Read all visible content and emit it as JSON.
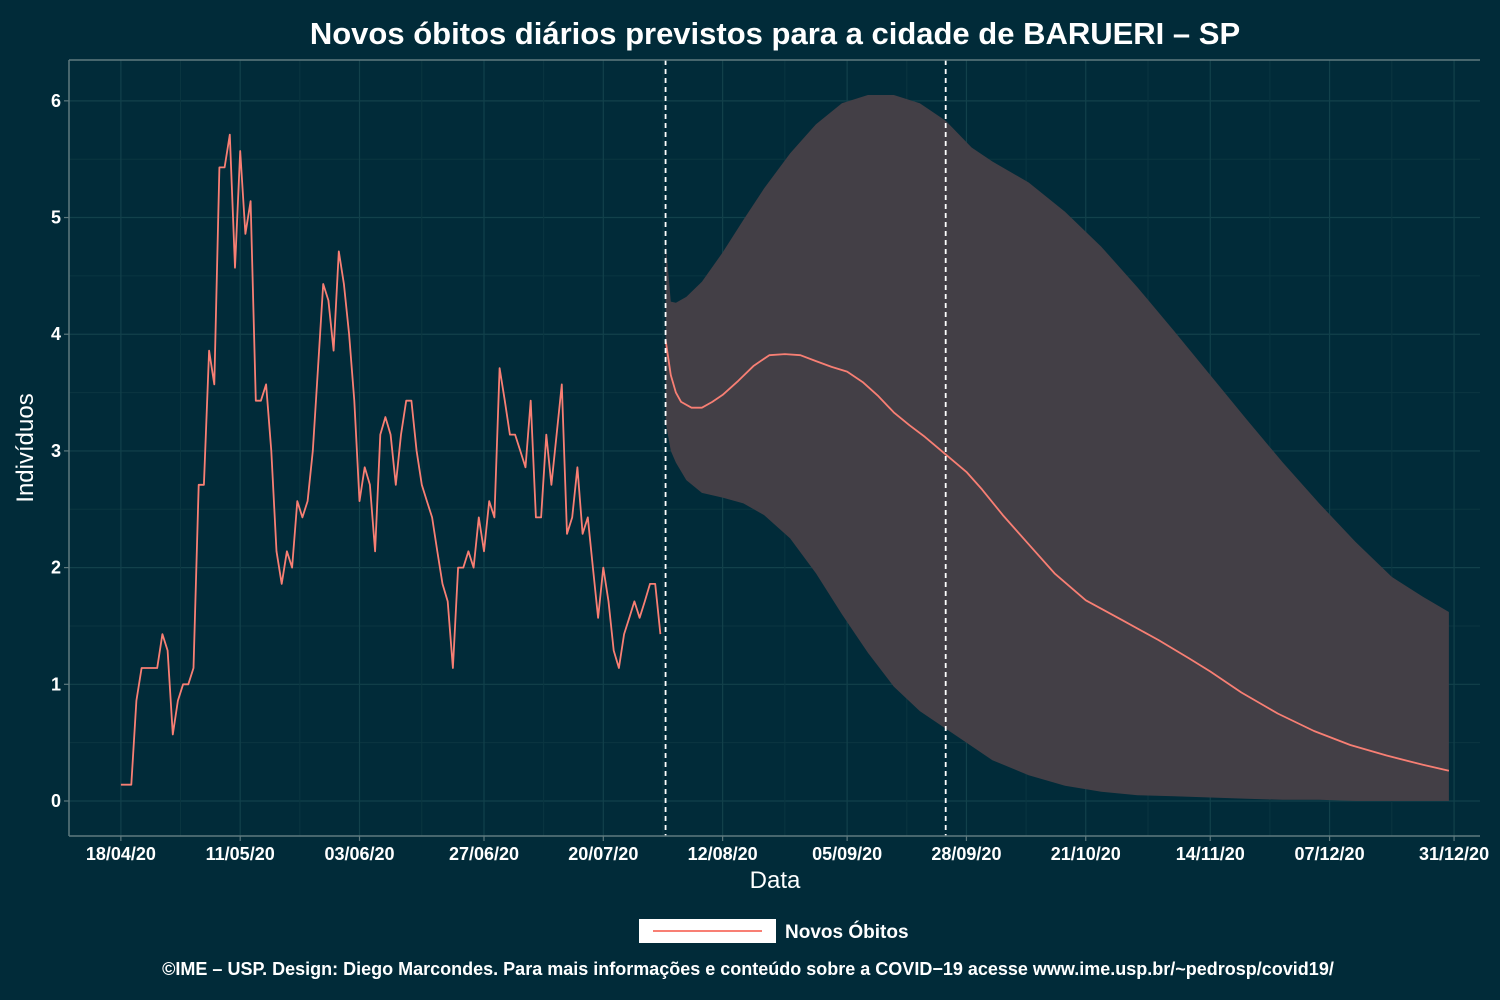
{
  "chart_data": {
    "type": "line",
    "title": "Novos óbitos diários previstos para a cidade de BARUERI – SP",
    "xlabel": "Data",
    "ylabel": "Indivíduos",
    "x_range": [
      "2020-04-08",
      "2021-01-05"
    ],
    "ylim": [
      -0.3,
      6.35
    ],
    "y_ticks": [
      0,
      1,
      2,
      3,
      4,
      5,
      6
    ],
    "x_ticks": [
      {
        "date": "2020-04-18",
        "label": "18/04/20"
      },
      {
        "date": "2020-05-11",
        "label": "11/05/20"
      },
      {
        "date": "2020-06-03",
        "label": "03/06/20"
      },
      {
        "date": "2020-06-27",
        "label": "27/06/20"
      },
      {
        "date": "2020-07-20",
        "label": "20/07/20"
      },
      {
        "date": "2020-08-12",
        "label": "12/08/20"
      },
      {
        "date": "2020-09-05",
        "label": "05/09/20"
      },
      {
        "date": "2020-09-28",
        "label": "28/09/20"
      },
      {
        "date": "2020-10-21",
        "label": "21/10/20"
      },
      {
        "date": "2020-11-14",
        "label": "14/11/20"
      },
      {
        "date": "2020-12-07",
        "label": "07/12/20"
      },
      {
        "date": "2020-12-31",
        "label": "31/12/20"
      }
    ],
    "grid": true,
    "legend_position": "bottom",
    "vlines": [
      "2020-08-01",
      "2020-09-24"
    ],
    "series": [
      {
        "name": "Novos Óbitos",
        "color": "#f87f74",
        "points": [
          [
            "2020-04-18",
            0.14
          ],
          [
            "2020-04-20",
            0.14
          ],
          [
            "2020-04-21",
            0.86
          ],
          [
            "2020-04-22",
            1.14
          ],
          [
            "2020-04-25",
            1.14
          ],
          [
            "2020-04-26",
            1.43
          ],
          [
            "2020-04-27",
            1.29
          ],
          [
            "2020-04-28",
            0.57
          ],
          [
            "2020-04-29",
            0.86
          ],
          [
            "2020-04-30",
            1.0
          ],
          [
            "2020-05-01",
            1.0
          ],
          [
            "2020-05-02",
            1.14
          ],
          [
            "2020-05-03",
            2.71
          ],
          [
            "2020-05-04",
            2.71
          ],
          [
            "2020-05-05",
            3.86
          ],
          [
            "2020-05-06",
            3.57
          ],
          [
            "2020-05-07",
            5.43
          ],
          [
            "2020-05-08",
            5.43
          ],
          [
            "2020-05-09",
            5.71
          ],
          [
            "2020-05-10",
            4.57
          ],
          [
            "2020-05-11",
            5.57
          ],
          [
            "2020-05-12",
            4.86
          ],
          [
            "2020-05-13",
            5.14
          ],
          [
            "2020-05-14",
            3.43
          ],
          [
            "2020-05-15",
            3.43
          ],
          [
            "2020-05-16",
            3.57
          ],
          [
            "2020-05-17",
            3.0
          ],
          [
            "2020-05-18",
            2.14
          ],
          [
            "2020-05-19",
            1.86
          ],
          [
            "2020-05-20",
            2.14
          ],
          [
            "2020-05-21",
            2.0
          ],
          [
            "2020-05-22",
            2.57
          ],
          [
            "2020-05-23",
            2.43
          ],
          [
            "2020-05-24",
            2.57
          ],
          [
            "2020-05-25",
            3.0
          ],
          [
            "2020-05-26",
            3.71
          ],
          [
            "2020-05-27",
            4.43
          ],
          [
            "2020-05-28",
            4.29
          ],
          [
            "2020-05-29",
            3.86
          ],
          [
            "2020-05-30",
            4.71
          ],
          [
            "2020-05-31",
            4.43
          ],
          [
            "2020-06-01",
            4.0
          ],
          [
            "2020-06-02",
            3.43
          ],
          [
            "2020-06-03",
            2.57
          ],
          [
            "2020-06-04",
            2.86
          ],
          [
            "2020-06-05",
            2.71
          ],
          [
            "2020-06-06",
            2.14
          ],
          [
            "2020-06-07",
            3.14
          ],
          [
            "2020-06-08",
            3.29
          ],
          [
            "2020-06-09",
            3.14
          ],
          [
            "2020-06-10",
            2.71
          ],
          [
            "2020-06-11",
            3.14
          ],
          [
            "2020-06-12",
            3.43
          ],
          [
            "2020-06-13",
            3.43
          ],
          [
            "2020-06-14",
            3.0
          ],
          [
            "2020-06-15",
            2.71
          ],
          [
            "2020-06-16",
            2.57
          ],
          [
            "2020-06-17",
            2.43
          ],
          [
            "2020-06-18",
            2.14
          ],
          [
            "2020-06-19",
            1.86
          ],
          [
            "2020-06-20",
            1.71
          ],
          [
            "2020-06-21",
            1.14
          ],
          [
            "2020-06-22",
            2.0
          ],
          [
            "2020-06-23",
            2.0
          ],
          [
            "2020-06-24",
            2.14
          ],
          [
            "2020-06-25",
            2.0
          ],
          [
            "2020-06-26",
            2.43
          ],
          [
            "2020-06-27",
            2.14
          ],
          [
            "2020-06-28",
            2.57
          ],
          [
            "2020-06-29",
            2.43
          ],
          [
            "2020-06-30",
            3.71
          ],
          [
            "2020-07-01",
            3.43
          ],
          [
            "2020-07-02",
            3.14
          ],
          [
            "2020-07-03",
            3.14
          ],
          [
            "2020-07-04",
            3.0
          ],
          [
            "2020-07-05",
            2.86
          ],
          [
            "2020-07-06",
            3.43
          ],
          [
            "2020-07-07",
            2.43
          ],
          [
            "2020-07-08",
            2.43
          ],
          [
            "2020-07-09",
            3.14
          ],
          [
            "2020-07-10",
            2.71
          ],
          [
            "2020-07-11",
            3.14
          ],
          [
            "2020-07-12",
            3.57
          ],
          [
            "2020-07-13",
            2.29
          ],
          [
            "2020-07-14",
            2.43
          ],
          [
            "2020-07-15",
            2.86
          ],
          [
            "2020-07-16",
            2.29
          ],
          [
            "2020-07-17",
            2.43
          ],
          [
            "2020-07-18",
            2.0
          ],
          [
            "2020-07-19",
            1.57
          ],
          [
            "2020-07-20",
            2.0
          ],
          [
            "2020-07-21",
            1.71
          ],
          [
            "2020-07-22",
            1.29
          ],
          [
            "2020-07-23",
            1.14
          ],
          [
            "2020-07-24",
            1.43
          ],
          [
            "2020-07-25",
            1.57
          ],
          [
            "2020-07-26",
            1.71
          ],
          [
            "2020-07-27",
            1.57
          ],
          [
            "2020-07-28",
            1.71
          ],
          [
            "2020-07-29",
            1.86
          ],
          [
            "2020-07-30",
            1.86
          ],
          [
            "2020-07-31",
            1.43
          ]
        ]
      },
      {
        "name": "Novos Óbitos",
        "color": "#f87f74",
        "points": [
          [
            "2020-08-01",
            3.95
          ],
          [
            "2020-08-02",
            3.65
          ],
          [
            "2020-08-03",
            3.5
          ],
          [
            "2020-08-04",
            3.42
          ],
          [
            "2020-08-06",
            3.37
          ],
          [
            "2020-08-08",
            3.37
          ],
          [
            "2020-08-10",
            3.42
          ],
          [
            "2020-08-12",
            3.48
          ],
          [
            "2020-08-15",
            3.6
          ],
          [
            "2020-08-18",
            3.73
          ],
          [
            "2020-08-21",
            3.82
          ],
          [
            "2020-08-24",
            3.83
          ],
          [
            "2020-08-27",
            3.82
          ],
          [
            "2020-08-30",
            3.77
          ],
          [
            "2020-09-02",
            3.72
          ],
          [
            "2020-09-05",
            3.68
          ],
          [
            "2020-09-08",
            3.59
          ],
          [
            "2020-09-11",
            3.47
          ],
          [
            "2020-09-14",
            3.33
          ],
          [
            "2020-09-17",
            3.22
          ],
          [
            "2020-09-20",
            3.12
          ],
          [
            "2020-09-24",
            2.97
          ],
          [
            "2020-09-28",
            2.82
          ],
          [
            "2020-10-01",
            2.67
          ],
          [
            "2020-10-05",
            2.45
          ],
          [
            "2020-10-10",
            2.2
          ],
          [
            "2020-10-15",
            1.95
          ],
          [
            "2020-10-21",
            1.72
          ],
          [
            "2020-10-28",
            1.55
          ],
          [
            "2020-11-04",
            1.38
          ],
          [
            "2020-11-10",
            1.22
          ],
          [
            "2020-11-14",
            1.11
          ],
          [
            "2020-11-20",
            0.93
          ],
          [
            "2020-11-27",
            0.75
          ],
          [
            "2020-12-04",
            0.6
          ],
          [
            "2020-12-11",
            0.48
          ],
          [
            "2020-12-18",
            0.39
          ],
          [
            "2020-12-25",
            0.31
          ],
          [
            "2020-12-30",
            0.26
          ]
        ]
      }
    ],
    "interval": {
      "color": "#433f46",
      "points": [
        [
          "2020-08-01",
          4.8,
          3.25
        ],
        [
          "2020-08-02",
          4.28,
          3.0
        ],
        [
          "2020-08-03",
          4.27,
          2.9
        ],
        [
          "2020-08-05",
          4.32,
          2.75
        ],
        [
          "2020-08-08",
          4.45,
          2.64
        ],
        [
          "2020-08-12",
          4.7,
          2.6
        ],
        [
          "2020-08-16",
          4.98,
          2.55
        ],
        [
          "2020-08-20",
          5.25,
          2.45
        ],
        [
          "2020-08-25",
          5.55,
          2.25
        ],
        [
          "2020-08-30",
          5.8,
          1.95
        ],
        [
          "2020-09-04",
          5.98,
          1.6
        ],
        [
          "2020-09-09",
          6.05,
          1.27
        ],
        [
          "2020-09-14",
          6.05,
          0.98
        ],
        [
          "2020-09-19",
          5.98,
          0.77
        ],
        [
          "2020-09-24",
          5.83,
          0.62
        ],
        [
          "2020-09-29",
          5.6,
          0.47
        ],
        [
          "2020-10-03",
          5.48,
          0.35
        ],
        [
          "2020-10-10",
          5.3,
          0.22
        ],
        [
          "2020-10-17",
          5.05,
          0.13
        ],
        [
          "2020-10-24",
          4.75,
          0.08
        ],
        [
          "2020-10-31",
          4.4,
          0.05
        ],
        [
          "2020-11-07",
          4.03,
          0.04
        ],
        [
          "2020-11-14",
          3.65,
          0.03
        ],
        [
          "2020-11-21",
          3.27,
          0.02
        ],
        [
          "2020-11-28",
          2.9,
          0.01
        ],
        [
          "2020-12-05",
          2.55,
          0.01
        ],
        [
          "2020-12-12",
          2.22,
          0.0
        ],
        [
          "2020-12-19",
          1.92,
          0.0
        ],
        [
          "2020-12-25",
          1.75,
          0.0
        ],
        [
          "2020-12-30",
          1.62,
          0.0
        ]
      ]
    }
  },
  "legend": {
    "label": "Novos Óbitos"
  },
  "caption": "©IME – USP. Design: Diego Marcondes. Para mais informações e conteúdo sobre a COVID−19 acesse www.ime.usp.br/~pedrosp/covid19/"
}
